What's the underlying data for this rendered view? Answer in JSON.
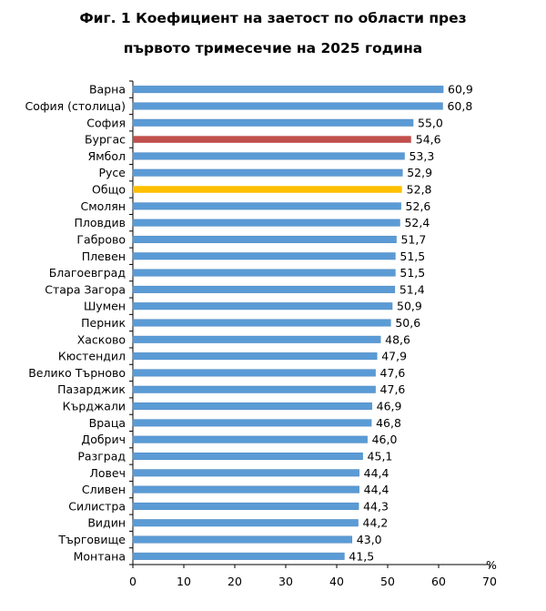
{
  "chart_data": {
    "type": "bar",
    "orientation": "horizontal",
    "title_line1": "Фиг. 1 Коефициент на заетост по области през",
    "title_line2": "първото тримесечие на 2025 година",
    "unit": "%",
    "xlim": [
      0,
      70
    ],
    "xticks": [
      "0",
      "10",
      "20",
      "30",
      "40",
      "50",
      "60",
      "70"
    ],
    "grid": false,
    "legend": "none",
    "colors": {
      "default": "#5B9BD5",
      "highlight_burgas": "#C0504D",
      "highlight_total": "#FFC000"
    },
    "categories": [
      "Варна",
      "София (столица)",
      "София",
      "Бургас",
      "Ямбол",
      "Русе",
      "Общо",
      "Смолян",
      "Пловдив",
      "Габрово",
      "Плевен",
      "Благоевград",
      "Стара Загора",
      "Шумен",
      "Перник",
      "Хасково",
      "Кюстендил",
      "Велико Търново",
      "Пазарджик",
      "Кърджали",
      "Враца",
      "Добрич",
      "Разград",
      "Ловеч",
      "Сливен",
      "Силистра",
      "Видин",
      "Търговище",
      "Монтана"
    ],
    "values": [
      60.9,
      60.8,
      55.0,
      54.6,
      53.3,
      52.9,
      52.8,
      52.6,
      52.4,
      51.7,
      51.5,
      51.5,
      51.4,
      50.9,
      50.6,
      48.6,
      47.9,
      47.6,
      47.6,
      46.9,
      46.8,
      46.0,
      45.1,
      44.4,
      44.4,
      44.3,
      44.2,
      43.0,
      41.5
    ],
    "value_labels": [
      "60,9",
      "60,8",
      "55,0",
      "54,6",
      "53,3",
      "52,9",
      "52,8",
      "52,6",
      "52,4",
      "51,7",
      "51,5",
      "51,5",
      "51,4",
      "50,9",
      "50,6",
      "48,6",
      "47,9",
      "47,6",
      "47,6",
      "46,9",
      "46,8",
      "46,0",
      "45,1",
      "44,4",
      "44,4",
      "44,3",
      "44,2",
      "43,0",
      "41,5"
    ],
    "bar_colors": [
      "default",
      "default",
      "default",
      "highlight_burgas",
      "default",
      "default",
      "highlight_total",
      "default",
      "default",
      "default",
      "default",
      "default",
      "default",
      "default",
      "default",
      "default",
      "default",
      "default",
      "default",
      "default",
      "default",
      "default",
      "default",
      "default",
      "default",
      "default",
      "default",
      "default",
      "default"
    ]
  }
}
